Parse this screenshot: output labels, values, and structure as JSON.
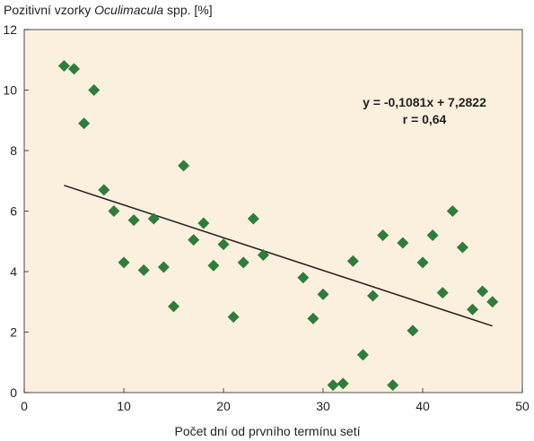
{
  "chart_data": {
    "type": "scatter",
    "title": "",
    "ylabel_parts": {
      "before": "Pozitivní vzorky ",
      "italic": "Oculimacula",
      "after": " spp. [%]"
    },
    "xlabel": "Počet dní od prvního termínu setí",
    "xlim": [
      0,
      50
    ],
    "ylim": [
      0,
      12
    ],
    "x_ticks": [
      "0",
      "10",
      "20",
      "30",
      "40",
      "50"
    ],
    "y_ticks": [
      "0",
      "2",
      "4",
      "6",
      "8",
      "10",
      "12"
    ],
    "grid": false,
    "background_color": "#fbf0dd",
    "marker_color": "#2e7d3a",
    "line_color": "#231f20",
    "points": [
      {
        "x": 4,
        "y": 10.8
      },
      {
        "x": 5,
        "y": 10.7
      },
      {
        "x": 6,
        "y": 8.9
      },
      {
        "x": 7,
        "y": 10.0
      },
      {
        "x": 8,
        "y": 6.7
      },
      {
        "x": 9,
        "y": 6.0
      },
      {
        "x": 10,
        "y": 4.3
      },
      {
        "x": 11,
        "y": 5.7
      },
      {
        "x": 12,
        "y": 4.05
      },
      {
        "x": 13,
        "y": 5.75
      },
      {
        "x": 14,
        "y": 4.15
      },
      {
        "x": 15,
        "y": 2.85
      },
      {
        "x": 16,
        "y": 7.5
      },
      {
        "x": 17,
        "y": 5.05
      },
      {
        "x": 18,
        "y": 5.6
      },
      {
        "x": 19,
        "y": 4.2
      },
      {
        "x": 20,
        "y": 4.9
      },
      {
        "x": 21,
        "y": 2.5
      },
      {
        "x": 22,
        "y": 4.3
      },
      {
        "x": 23,
        "y": 5.75
      },
      {
        "x": 24,
        "y": 4.55
      },
      {
        "x": 28,
        "y": 3.8
      },
      {
        "x": 29,
        "y": 2.45
      },
      {
        "x": 30,
        "y": 3.25
      },
      {
        "x": 31,
        "y": 0.25
      },
      {
        "x": 32,
        "y": 0.3
      },
      {
        "x": 33,
        "y": 4.35
      },
      {
        "x": 34,
        "y": 1.25
      },
      {
        "x": 35,
        "y": 3.2
      },
      {
        "x": 36,
        "y": 5.2
      },
      {
        "x": 37,
        "y": 0.25
      },
      {
        "x": 38,
        "y": 4.95
      },
      {
        "x": 39,
        "y": 2.05
      },
      {
        "x": 40,
        "y": 4.3
      },
      {
        "x": 41,
        "y": 5.2
      },
      {
        "x": 42,
        "y": 3.3
      },
      {
        "x": 43,
        "y": 6.0
      },
      {
        "x": 44,
        "y": 4.8
      },
      {
        "x": 45,
        "y": 2.75
      },
      {
        "x": 46,
        "y": 3.35
      },
      {
        "x": 47,
        "y": 3.0
      }
    ],
    "trendline": {
      "slope": -0.1081,
      "intercept": 7.2822,
      "x_start": 4,
      "x_end": 47
    },
    "annotation": {
      "equation": "y = -0,1081x + 7,2822",
      "r_value": "r = 0,64"
    }
  }
}
